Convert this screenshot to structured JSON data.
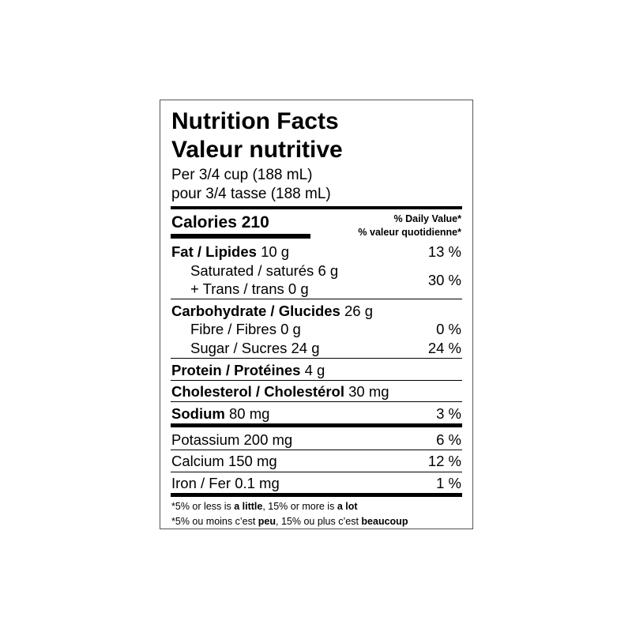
{
  "title_en": "Nutrition Facts",
  "title_fr": "Valeur nutritive",
  "serving_en": "Per 3/4 cup (188 mL)",
  "serving_fr": "pour 3/4 tasse (188 mL)",
  "calories": {
    "label": "Calories",
    "value": "210"
  },
  "dv_header_en": "% Daily Value*",
  "dv_header_fr": "% valeur quotidienne*",
  "rows": {
    "fat": {
      "label": "Fat / Lipides",
      "amount": "10 g",
      "dv": "13 %"
    },
    "saturated": {
      "label": "Saturated / saturés",
      "amount": "6 g"
    },
    "trans": {
      "label": "+ Trans / trans",
      "amount": "0 g",
      "dv": "30 %"
    },
    "carbohydrate": {
      "label": "Carbohydrate / Glucides",
      "amount": "26 g"
    },
    "fibre": {
      "label": "Fibre / Fibres",
      "amount": "0 g",
      "dv": "0 %"
    },
    "sugar": {
      "label": "Sugar / Sucres",
      "amount": "24 g",
      "dv": "24 %"
    },
    "protein": {
      "label": "Protein / Protéines",
      "amount": "4 g"
    },
    "cholesterol": {
      "label": "Cholesterol / Cholestérol",
      "amount": "30 mg"
    },
    "sodium": {
      "label": "Sodium",
      "amount": "80 mg",
      "dv": "3 %"
    },
    "potassium": {
      "label": "Potassium",
      "amount": "200 mg",
      "dv": "6 %"
    },
    "calcium": {
      "label": "Calcium",
      "amount": "150 mg",
      "dv": "12 %"
    },
    "iron": {
      "label": "Iron / Fer",
      "amount": "0.1 mg",
      "dv": "1 %"
    }
  },
  "footnote_en": {
    "p1": "*5% or less is ",
    "b1": "a little",
    "p2": ", 15% or more is ",
    "b2": "a lot"
  },
  "footnote_fr": {
    "p1": "*5% ou moins c’est ",
    "b1": "peu",
    "p2": ", 15% ou plus c’est ",
    "b2": "beaucoup"
  }
}
